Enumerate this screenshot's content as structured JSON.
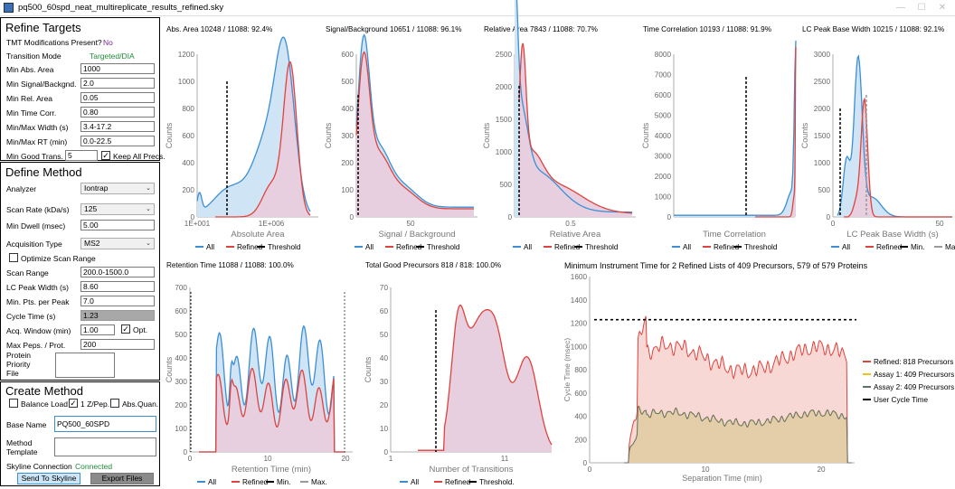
{
  "window": {
    "title": "pq500_60spd_neat_multireplicate_results_refined.sky",
    "minimize": "—",
    "maximize": "☐",
    "close": "✕"
  },
  "refine": {
    "header": "Refine Targets",
    "tmt_label": "TMT Modifications Present?",
    "tmt_value": "No",
    "mode_label": "Transition Mode",
    "mode_value": "Targeted/DIA",
    "rows": [
      {
        "label": "Min Abs. Area",
        "value": "1000"
      },
      {
        "label": "Min Signal/Backgnd.",
        "value": "2.0"
      },
      {
        "label": "Min Rel. Area",
        "value": "0.05"
      },
      {
        "label": "Min Time Corr.",
        "value": "0.80"
      },
      {
        "label": "Min/Max Width (s)",
        "value": "3.4-17.2"
      },
      {
        "label": "Min/Max RT (min)",
        "value": "0.0-22.5"
      }
    ],
    "good_label": "Min Good Trans.",
    "good_value": "5",
    "keep_label": "Keep All Precs."
  },
  "define": {
    "header": "Define Method",
    "analyzer_label": "Analyzer",
    "analyzer_value": "Iontrap",
    "scan_rate_label": "Scan Rate (kDa/s)",
    "scan_rate_value": "125",
    "dwell_label": "Min Dwell (msec)",
    "dwell_value": "5.00",
    "acq_label": "Acquisition Type",
    "acq_value": "MS2",
    "opt_scan_label": "Optimize Scan Range",
    "rows": [
      {
        "label": "Scan Range",
        "value": "200.0-1500.0"
      },
      {
        "label": "LC Peak Width (s)",
        "value": "8.60"
      },
      {
        "label": "Min. Pts. per Peak",
        "value": "7.0"
      }
    ],
    "cycle_label": "Cycle Time (s)",
    "cycle_value": "1.23",
    "acqwin_label": "Acq. Window (min)",
    "acqwin_value": "1.00",
    "opt_label": "Opt.",
    "maxpep_label": "Max Peps. / Prot.",
    "maxpep_value": "200",
    "protfile_label1": "Protein",
    "protfile_label2": "Priority",
    "protfile_label3": "File"
  },
  "create": {
    "header": "Create Method",
    "balance_label": "Balance Load",
    "z_label": "1 Z/Pep.",
    "absq_label": "Abs.Quan.",
    "basename_label": "Base Name",
    "basename_value": "PQ500_60SPD",
    "template_label1": "Method",
    "template_label2": "Template",
    "conn_label": "Skyline Connection",
    "conn_value": "Connected",
    "send_label": "Send To Skyline",
    "export_label": "Export Files"
  },
  "colors": {
    "all": "#3c8fd4",
    "refined": "#e0423c",
    "threshold": "#000000",
    "assay1": "#f0c020",
    "assay2": "#607070",
    "all_fill": "#cfe4f5",
    "refined_fill": "#e7cfe0"
  },
  "charts": {
    "abs_area": {
      "title": "Abs. Area 10248 / 11088: 92.4%",
      "xlabel": "Absolute Area",
      "ylabel": "Counts",
      "ticks_y": [
        "0",
        "200",
        "400",
        "600",
        "800",
        "1000",
        "1200"
      ],
      "ticks_x": [
        "1E+001",
        "1E+006"
      ],
      "legend": [
        "All",
        "Refined",
        "Threshold"
      ]
    },
    "sb": {
      "title": "Signal/Background 10651 / 11088: 96.1%",
      "xlabel": "Signal / Background",
      "ylabel": "Counts",
      "ticks_y": [
        "0",
        "100",
        "200",
        "300",
        "400",
        "500",
        "600"
      ],
      "ticks_x": [
        "50"
      ],
      "legend": [
        "All",
        "Refined",
        "Threshold"
      ]
    },
    "rel": {
      "title": "Relative Area 7843 / 11088: 70.7%",
      "xlabel": "Relative Area",
      "ylabel": "Counts",
      "ticks_y": [
        "0",
        "500",
        "1000",
        "1500",
        "2000",
        "2500"
      ],
      "ticks_x": [
        "0.5"
      ],
      "legend": [
        "All",
        "Refined",
        "Threshold"
      ]
    },
    "tcorr": {
      "title": "Time Correlation 10193 / 11088: 91.9%",
      "xlabel": "Time Correlation",
      "ylabel": "Counts",
      "ticks_y": [
        "0",
        "1000",
        "2000",
        "3000",
        "4000",
        "5000",
        "6000",
        "7000",
        "8000"
      ],
      "ticks_x": [],
      "legend": [
        "All",
        "Refined",
        "Threshold"
      ]
    },
    "width": {
      "title": "LC Peak Base Width 10215 / 11088: 92.1%",
      "xlabel": "LC Peak Base Width (s)",
      "ylabel": "Counts",
      "ticks_y": [
        "0",
        "500",
        "1000",
        "1500",
        "2000",
        "2500",
        "3000"
      ],
      "ticks_x": [
        "0",
        "50"
      ],
      "legend": [
        "All",
        "Refined",
        "Min.",
        "Max."
      ]
    },
    "rt": {
      "title": "Retention Time 11088 / 11088: 100.0%",
      "xlabel": "Retention Time (min)",
      "ylabel": "Counts",
      "ticks_y": [
        "0",
        "100",
        "200",
        "300",
        "400",
        "500",
        "600",
        "700"
      ],
      "ticks_x": [
        "0",
        "10",
        "20"
      ],
      "legend": [
        "All",
        "Refined",
        "Min.",
        "Max."
      ]
    },
    "trans": {
      "title": "Total Good Precursors 818 / 818: 100.0%",
      "xlabel": "Number of Transitions",
      "ylabel": "Counts",
      "ticks_y": [
        "0",
        "10",
        "20",
        "30",
        "40",
        "50",
        "60",
        "70"
      ],
      "ticks_x": [
        "1",
        "11"
      ],
      "legend": [
        "All",
        "Refined",
        "Threshold."
      ]
    },
    "cycle": {
      "title": "Minimum Instrument Time for 2 Refined Lists of 409 Precursors, 579 of 579 Proteins",
      "xlabel": "Separation Time (min)",
      "ylabel": "Cycle Time (msec)",
      "ticks_y": [
        "0",
        "200",
        "400",
        "600",
        "800",
        "1000",
        "1200",
        "1400",
        "1600"
      ],
      "ticks_x": [
        "0",
        "10",
        "20"
      ],
      "legend": [
        "Refined: 818 Precursors",
        "Assay 1: 409 Precursors",
        "Assay 2: 409 Precursors",
        "User Cycle Time"
      ]
    }
  }
}
